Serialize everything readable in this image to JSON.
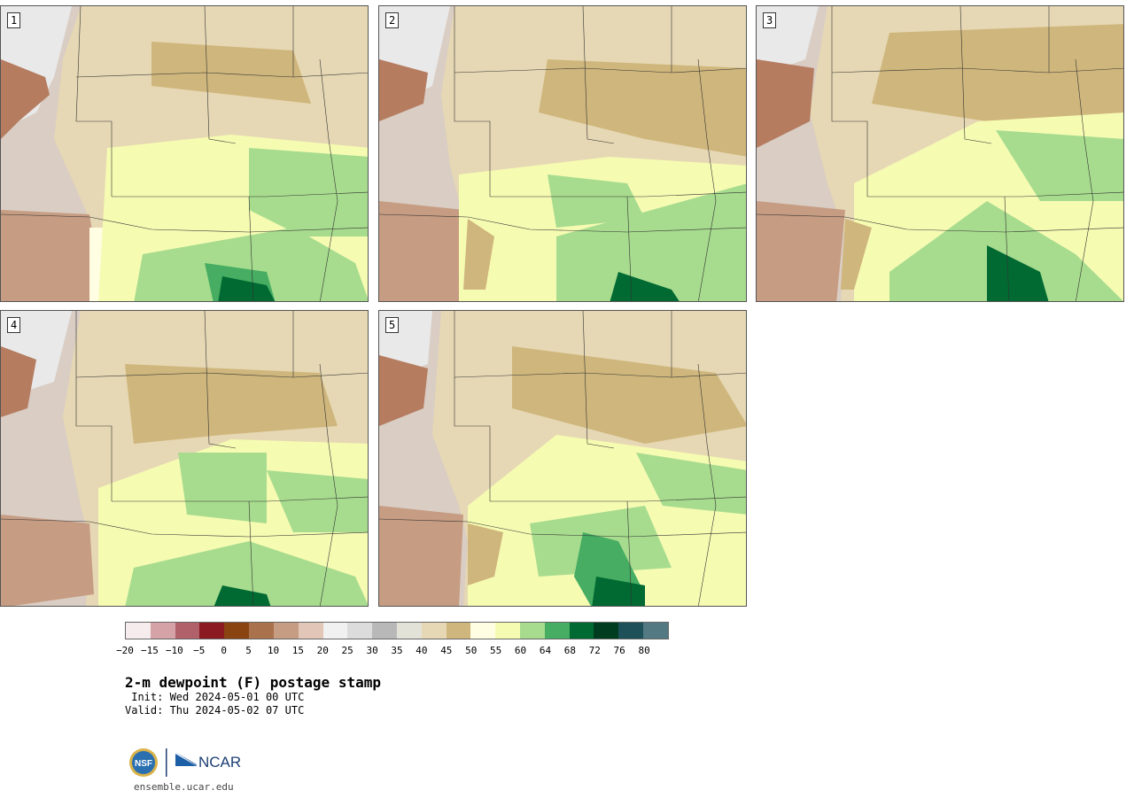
{
  "panels": [
    {
      "label": "1"
    },
    {
      "label": "2"
    },
    {
      "label": "3"
    },
    {
      "label": "4"
    },
    {
      "label": "5"
    }
  ],
  "colorbar": {
    "colors": [
      "#f6eced",
      "#d5a2a8",
      "#b0616a",
      "#8c1a22",
      "#8a4412",
      "#a9714c",
      "#c69c82",
      "#e2c7b8",
      "#f1f1f1",
      "#dcdcdc",
      "#b8b8b8",
      "#e2e2d8",
      "#e6d8b4",
      "#cfb67c",
      "#fffde2",
      "#f6fbb2",
      "#a7dc8e",
      "#46ad62",
      "#006a32",
      "#003d20",
      "#1d5058",
      "#537a82"
    ],
    "ticks": [
      "−20",
      "−15",
      "−10",
      "−5",
      "0",
      "5",
      "10",
      "15",
      "20",
      "25",
      "30",
      "35",
      "40",
      "45",
      "50",
      "55",
      "60",
      "64",
      "68",
      "72",
      "76",
      "80"
    ]
  },
  "title": "2-m dewpoint (F) postage stamp",
  "init": " Init: Wed 2024-05-01 00 UTC",
  "valid": "Valid: Thu 2024-05-02 07 UTC",
  "logos": {
    "nsf": "NSF",
    "ncar": "NCAR"
  },
  "site": "ensemble.ucar.edu"
}
